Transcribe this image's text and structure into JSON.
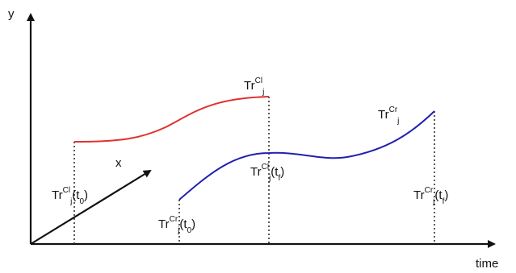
{
  "axes": {
    "y_label": "y",
    "x_label": "x",
    "time_label": "time"
  },
  "labels": {
    "cl": {
      "base": "Tr",
      "sup": "Cl",
      "sub": "j"
    },
    "cr": {
      "base": "Tr",
      "sup": "Cr",
      "sub": "j"
    },
    "cl_t0": {
      "base": "Tr",
      "sup": "Cl",
      "sub": "j",
      "arg": "(t",
      "argsub": "0",
      "close": ")"
    },
    "cl_tf": {
      "base": "Tr",
      "sup": "Cl",
      "sub": "j",
      "arg": "(t",
      "argsub": "f",
      "close": ")"
    },
    "cr_t0": {
      "base": "Tr",
      "sup": "Cr",
      "sub": "j",
      "arg": "(t",
      "argsub": "0",
      "close": ")"
    },
    "cr_tf": {
      "base": "Tr",
      "sup": "Cr",
      "sub": "j",
      "arg": "(t",
      "argsub": "f",
      "close": ")"
    }
  },
  "colors": {
    "axis": "#111111",
    "cl_curve": "#e03030",
    "cr_curve": "#2020b0",
    "dotted": "#222222"
  }
}
